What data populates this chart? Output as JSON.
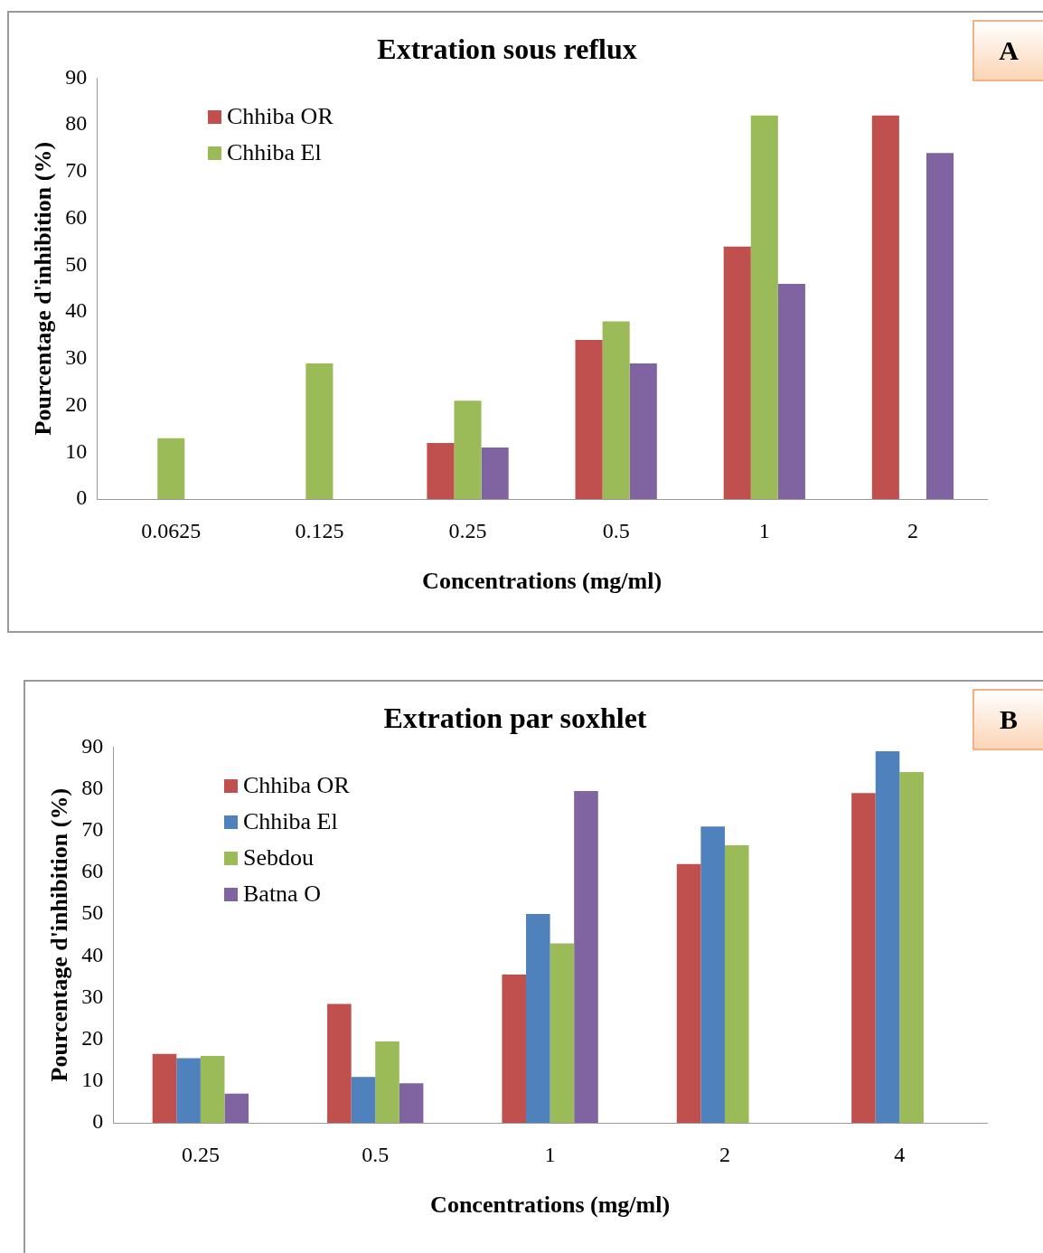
{
  "chart_data": [
    {
      "type": "bar",
      "title": "Extration sous reflux",
      "xlabel": "Concentrations (mg/ml)",
      "ylabel": "Pourcentage d'inhibition (%)",
      "categories": [
        "0.0625",
        "0.125",
        "0.25",
        "0.5",
        "1",
        "2"
      ],
      "series": [
        {
          "name": "Chhiba OR",
          "color": "#c0504d",
          "values": [
            null,
            null,
            12,
            34,
            54,
            82
          ]
        },
        {
          "name": "Chhiba El",
          "color": "#9bbb59",
          "values": [
            13,
            29,
            21,
            38,
            82,
            null
          ]
        },
        {
          "color": "#8064a2",
          "values": [
            null,
            null,
            11,
            29,
            46,
            74
          ]
        }
      ],
      "ylim": [
        0,
        90
      ],
      "yticks": [
        0,
        10,
        20,
        30,
        40,
        50,
        60,
        70,
        80,
        90
      ],
      "grid": false,
      "legend": "top left",
      "annotations": [
        "A"
      ]
    },
    {
      "type": "bar",
      "title": "Extration par soxhlet",
      "xlabel": "Concentrations (mg/ml)",
      "ylabel": "Pourcentage d'inhibition (%)",
      "categories": [
        "0.25",
        "0.5",
        "1",
        "2",
        "4"
      ],
      "series": [
        {
          "name": "Chhiba OR",
          "color": "#c0504d",
          "values": [
            16.5,
            28.5,
            35.5,
            62,
            79
          ]
        },
        {
          "name": "Chhiba El",
          "color": "#4f81bd",
          "values": [
            15.5,
            11,
            50,
            71,
            89
          ]
        },
        {
          "name": "Sebdou",
          "color": "#9bbb59",
          "values": [
            16,
            19.5,
            43,
            66.5,
            84
          ]
        },
        {
          "name": "Batna O",
          "color": "#8064a2",
          "values": [
            7,
            9.5,
            79.5,
            null,
            null
          ]
        }
      ],
      "ylim": [
        0,
        90
      ],
      "yticks": [
        0,
        10,
        20,
        30,
        40,
        50,
        60,
        70,
        80,
        90
      ],
      "grid": false,
      "legend": "top left",
      "annotations": [
        "B"
      ]
    }
  ]
}
